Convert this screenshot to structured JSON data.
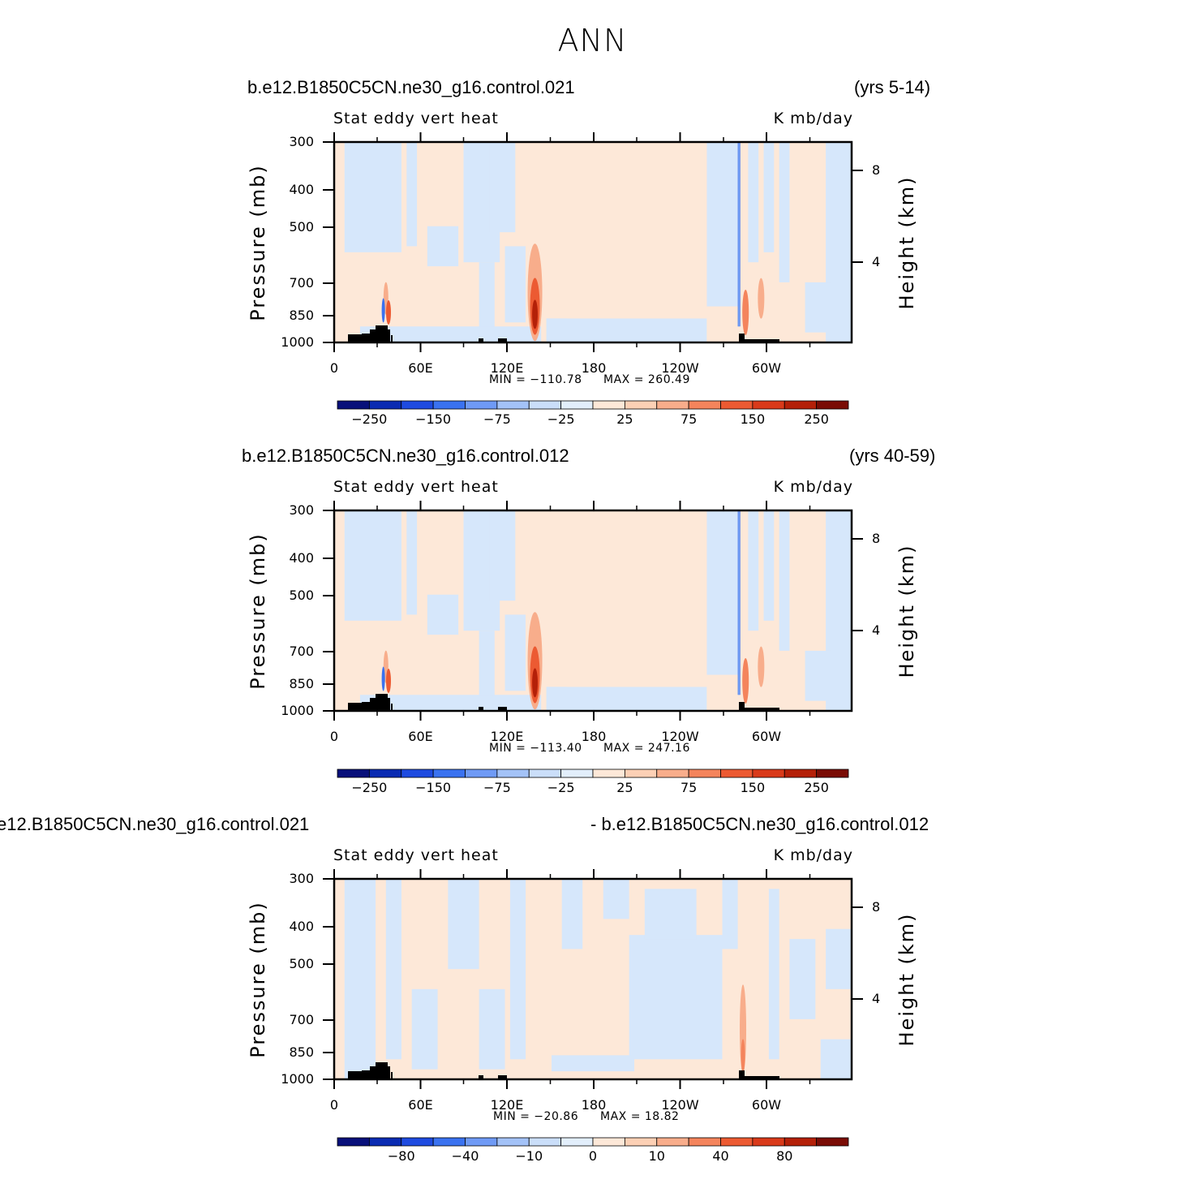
{
  "page": {
    "title": "ANN"
  },
  "chart_data": [
    {
      "type": "heatmap",
      "case_left": "b.e12.B1850C5CN.ne30_g16.control.021",
      "case_right": "(yrs 5-14)",
      "subtitle_left": "Stat eddy vert heat",
      "subtitle_right": "K mb/day",
      "xlabel": "",
      "ylabel": "Pressure (mb)",
      "ylabel_right": "Height (km)",
      "x_ticks": [
        "0",
        "60E",
        "120E",
        "180",
        "120W",
        "60W"
      ],
      "y_ticks": [
        "300",
        "400",
        "500",
        "700",
        "850",
        "1000"
      ],
      "y_right_ticks": [
        "8",
        "4"
      ],
      "min_text": "MIN = −110.78",
      "max_text": "MAX = 260.49",
      "min": -110.78,
      "max": 260.49,
      "colorbar_labels": [
        "−250",
        "−150",
        "−75",
        "−25",
        "25",
        "75",
        "150",
        "250"
      ],
      "colorbar_colors": [
        "#08107a",
        "#0a2bb2",
        "#1e4be0",
        "#3a72f0",
        "#6f9af5",
        "#a3c2f7",
        "#cadef9",
        "#e2eefb",
        "#fde8d8",
        "#fcd0b5",
        "#f8ad8b",
        "#f4845c",
        "#ec5a32",
        "#d93a1a",
        "#b42008",
        "#7a0c05"
      ]
    },
    {
      "type": "heatmap",
      "case_left": "b.e12.B1850C5CN.ne30_g16.control.012",
      "case_right": "(yrs 40-59)",
      "subtitle_left": "Stat eddy vert heat",
      "subtitle_right": "K mb/day",
      "xlabel": "",
      "ylabel": "Pressure (mb)",
      "ylabel_right": "Height (km)",
      "x_ticks": [
        "0",
        "60E",
        "120E",
        "180",
        "120W",
        "60W"
      ],
      "y_ticks": [
        "300",
        "400",
        "500",
        "700",
        "850",
        "1000"
      ],
      "y_right_ticks": [
        "8",
        "4"
      ],
      "min_text": "MIN = −113.40",
      "max_text": "MAX = 247.16",
      "min": -113.4,
      "max": 247.16,
      "colorbar_labels": [
        "−250",
        "−150",
        "−75",
        "−25",
        "25",
        "75",
        "150",
        "250"
      ],
      "colorbar_colors": [
        "#08107a",
        "#0a2bb2",
        "#1e4be0",
        "#3a72f0",
        "#6f9af5",
        "#a3c2f7",
        "#cadef9",
        "#e2eefb",
        "#fde8d8",
        "#fcd0b5",
        "#f8ad8b",
        "#f4845c",
        "#ec5a32",
        "#d93a1a",
        "#b42008",
        "#7a0c05"
      ]
    },
    {
      "type": "heatmap",
      "case_left": "e12.B1850C5CN.ne30_g16.control.021",
      "case_right": "- b.e12.B1850C5CN.ne30_g16.control.012",
      "subtitle_left": "Stat eddy vert heat",
      "subtitle_right": "K mb/day",
      "xlabel": "",
      "ylabel": "Pressure (mb)",
      "ylabel_right": "Height (km)",
      "x_ticks": [
        "0",
        "60E",
        "120E",
        "180",
        "120W",
        "60W"
      ],
      "y_ticks": [
        "300",
        "400",
        "500",
        "700",
        "850",
        "1000"
      ],
      "y_right_ticks": [
        "8",
        "4"
      ],
      "min_text": "MIN = −20.86",
      "max_text": "MAX =  18.82",
      "min": -20.86,
      "max": 18.82,
      "colorbar_labels": [
        "−80",
        "−40",
        "−10",
        "0",
        "10",
        "40",
        "80"
      ],
      "colorbar_colors": [
        "#08107a",
        "#0a2bb2",
        "#1e4be0",
        "#3a72f0",
        "#6f9af5",
        "#a3c2f7",
        "#cadef9",
        "#e2eefb",
        "#fde8d8",
        "#fcd0b5",
        "#f8ad8b",
        "#f4845c",
        "#ec5a32",
        "#d93a1a",
        "#b42008",
        "#7a0c05"
      ]
    }
  ]
}
